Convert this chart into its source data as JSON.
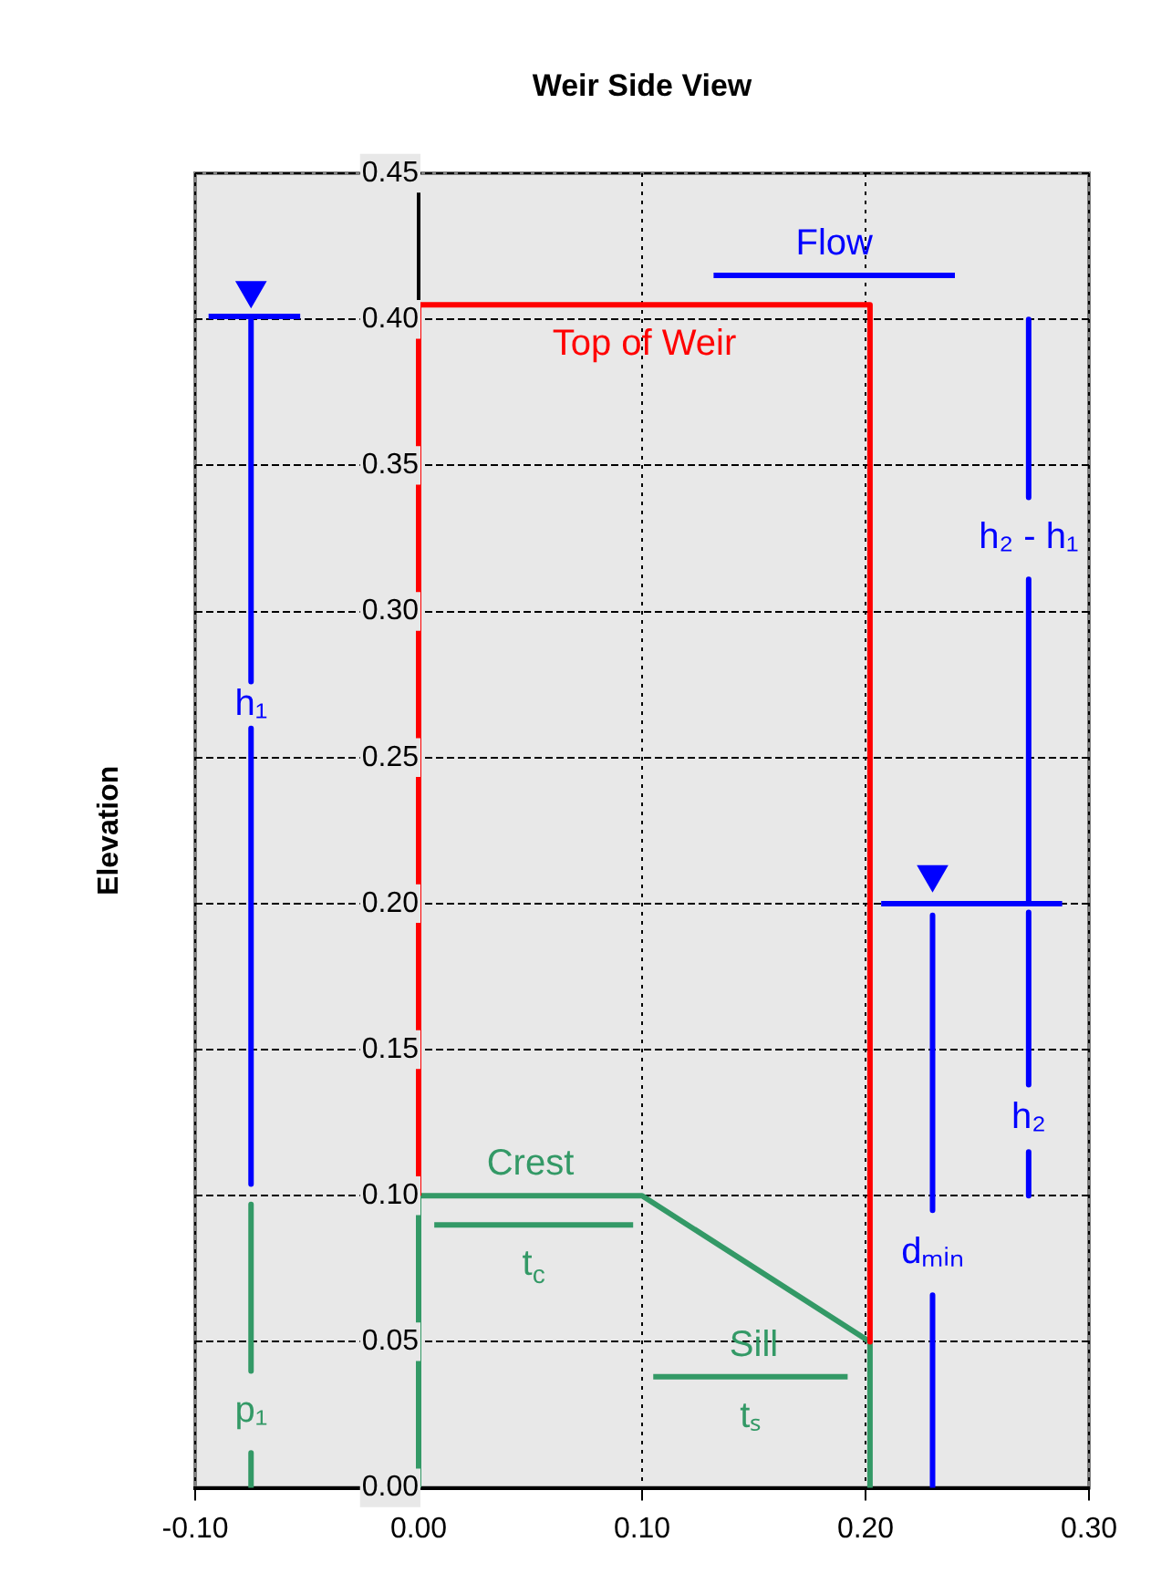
{
  "chart_data": {
    "type": "line",
    "title": "Weir Side View",
    "ylabel": "Elevation",
    "xlim": [
      -0.1,
      0.3
    ],
    "xticks": [
      {
        "value": -0.1,
        "label": "-0.10"
      },
      {
        "value": 0,
        "label": "0.00"
      },
      {
        "value": 0.1,
        "label": "0.10"
      },
      {
        "value": 0.2,
        "label": "0.20"
      },
      {
        "value": 0.3,
        "label": "0.30"
      }
    ],
    "ylim": [
      0,
      0.45
    ],
    "yticks": [
      {
        "value": 0,
        "label": "0.00"
      },
      {
        "value": 0.05,
        "label": "0.05"
      },
      {
        "value": 0.1,
        "label": "0.10"
      },
      {
        "value": 0.15,
        "label": "0.15"
      },
      {
        "value": 0.2,
        "label": "0.20"
      },
      {
        "value": 0.25,
        "label": "0.25"
      },
      {
        "value": 0.3,
        "label": "0.30"
      },
      {
        "value": 0.35,
        "label": "0.35"
      },
      {
        "value": 0.4,
        "label": "0.40"
      },
      {
        "value": 0.45,
        "label": "0.45"
      }
    ],
    "grid": true,
    "legend": false,
    "marker": "none",
    "line_style": "solid",
    "series": [
      {
        "name": "Top of Weir",
        "color": "#ff0000",
        "x": [
          0,
          0,
          0.202,
          0.202
        ],
        "values": [
          0.1,
          0.405,
          0.405,
          0.05
        ]
      },
      {
        "color": "#339966",
        "x": [
          0,
          0,
          0.1,
          0.202,
          0.202
        ],
        "values": [
          0,
          0.1,
          0.1,
          0.05,
          0
        ]
      },
      {
        "color": "#0000ff",
        "x": [
          -0.094,
          -0.053
        ],
        "values": [
          0.401,
          0.401
        ]
      },
      {
        "type": "scatter",
        "marker": "triangle",
        "color": "#0000ff",
        "x": [
          -0.075
        ],
        "values": [
          0.41
        ]
      },
      {
        "name": "h₁",
        "color": "#0000ff",
        "x": [
          -0.075,
          -0.075,
          null,
          -0.075,
          -0.075
        ],
        "values": [
          0.4,
          0.276,
          null,
          0.26,
          0.104
        ]
      },
      {
        "name": "p₁",
        "color": "#339966",
        "x": [
          -0.075,
          -0.075,
          null,
          -0.075,
          -0.075
        ],
        "values": [
          0.097,
          0.04,
          null,
          0.012,
          0
        ]
      },
      {
        "color": "#0000ff",
        "x": [
          0.207,
          0.288
        ],
        "values": [
          0.2,
          0.2
        ]
      },
      {
        "type": "scatter",
        "marker": "triangle",
        "color": "#0000ff",
        "x": [
          0.23
        ],
        "values": [
          0.21
        ]
      },
      {
        "name": "dₘᵢₙ",
        "color": "#0000ff",
        "x": [
          0.23,
          0.23,
          null,
          0.23,
          0.23
        ],
        "values": [
          0.196,
          0.095,
          null,
          0.066,
          0
        ]
      },
      {
        "name": "h₂ - h₁",
        "color": "#0000ff",
        "x": [
          0.273,
          0.273,
          null,
          0.273,
          0.273
        ],
        "values": [
          0.4,
          0.339,
          null,
          0.311,
          0.2
        ]
      },
      {
        "name": "h₂",
        "color": "#0000ff",
        "x": [
          0.273,
          0.273,
          null,
          0.273,
          0.273
        ],
        "values": [
          0.197,
          0.138,
          null,
          0.115,
          0.1
        ]
      },
      {
        "color": "#0000ff",
        "x": [
          0.132,
          0.24
        ],
        "values": [
          0.415,
          0.415
        ]
      },
      {
        "name": "t$_{c}$",
        "color": "#339966",
        "x": [
          0.007,
          0.096
        ],
        "values": [
          0.09,
          0.09
        ]
      },
      {
        "name": "tₛ",
        "color": "#339966",
        "x": [
          0.105,
          0.192
        ],
        "values": [
          0.038,
          0.038
        ]
      }
    ],
    "annotations": [
      {
        "text": "Flow",
        "x": 0.186,
        "y": 0.415
      },
      {
        "text": "Crest",
        "x": 0.05,
        "y": 0.1
      },
      {
        "text": "Sill",
        "x": 0.15,
        "y": 0.038
      }
    ]
  }
}
